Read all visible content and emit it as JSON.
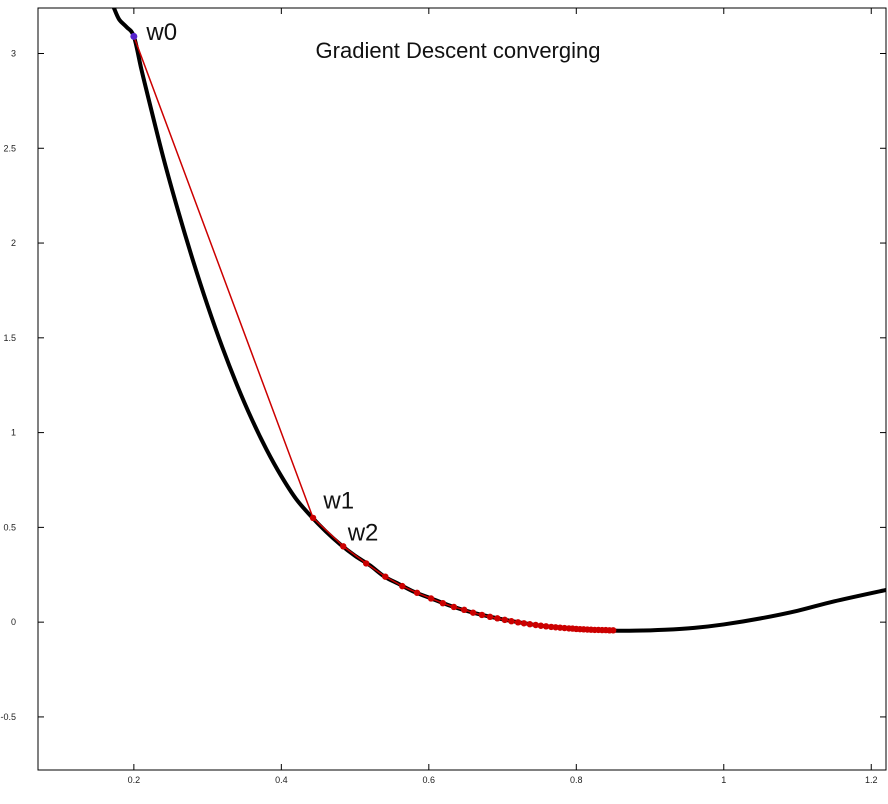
{
  "chart_data": {
    "type": "line",
    "title": "Gradient Descent converging",
    "xlabel": "",
    "ylabel": "",
    "xlim": [
      0.07,
      1.22
    ],
    "ylim": [
      -0.78,
      3.24
    ],
    "grid": false,
    "x_ticks": [
      {
        "value": 0.2,
        "label": "0.2"
      },
      {
        "value": 0.4,
        "label": "0.4"
      },
      {
        "value": 0.6,
        "label": "0.6"
      },
      {
        "value": 0.8,
        "label": "0.8"
      },
      {
        "value": 1.0,
        "label": "1"
      },
      {
        "value": 1.2,
        "label": "1.2"
      }
    ],
    "y_ticks": [
      {
        "value": -0.5,
        "label": "-0.5"
      },
      {
        "value": 0,
        "label": "0"
      },
      {
        "value": 0.5,
        "label": "0.5"
      },
      {
        "value": 1,
        "label": "1"
      },
      {
        "value": 1.5,
        "label": "1.5"
      },
      {
        "value": 2,
        "label": "2"
      },
      {
        "value": 2.5,
        "label": "2.5"
      },
      {
        "value": 3,
        "label": "3"
      }
    ],
    "curve": {
      "color": "#000000",
      "points": [
        [
          0.173,
          3.24
        ],
        [
          0.18,
          3.18
        ],
        [
          0.19,
          3.14
        ],
        [
          0.2,
          3.09
        ],
        [
          0.21,
          2.92
        ],
        [
          0.22,
          2.76
        ],
        [
          0.24,
          2.45
        ],
        [
          0.26,
          2.17
        ],
        [
          0.28,
          1.91
        ],
        [
          0.3,
          1.67
        ],
        [
          0.32,
          1.45
        ],
        [
          0.34,
          1.25
        ],
        [
          0.36,
          1.07
        ],
        [
          0.38,
          0.91
        ],
        [
          0.4,
          0.77
        ],
        [
          0.42,
          0.65
        ],
        [
          0.44,
          0.56
        ],
        [
          0.46,
          0.48
        ],
        [
          0.48,
          0.41
        ],
        [
          0.5,
          0.35
        ],
        [
          0.52,
          0.3
        ],
        [
          0.54,
          0.24
        ],
        [
          0.56,
          0.2
        ],
        [
          0.58,
          0.16
        ],
        [
          0.6,
          0.13
        ],
        [
          0.63,
          0.085
        ],
        [
          0.66,
          0.05
        ],
        [
          0.7,
          0.015
        ],
        [
          0.74,
          -0.012
        ],
        [
          0.78,
          -0.03
        ],
        [
          0.82,
          -0.04
        ],
        [
          0.85,
          -0.045
        ],
        [
          0.88,
          -0.045
        ],
        [
          0.92,
          -0.04
        ],
        [
          0.96,
          -0.03
        ],
        [
          1.0,
          -0.012
        ],
        [
          1.05,
          0.02
        ],
        [
          1.1,
          0.06
        ],
        [
          1.15,
          0.11
        ],
        [
          1.22,
          0.17
        ]
      ]
    },
    "descent_path": {
      "color": "#cc0000",
      "start_color": "#5522cc",
      "points": [
        [
          0.2,
          3.09
        ],
        [
          0.443,
          0.55
        ],
        [
          0.484,
          0.4
        ],
        [
          0.515,
          0.31
        ],
        [
          0.541,
          0.24
        ],
        [
          0.564,
          0.19
        ],
        [
          0.584,
          0.155
        ],
        [
          0.603,
          0.125
        ],
        [
          0.619,
          0.1
        ],
        [
          0.634,
          0.08
        ],
        [
          0.648,
          0.065
        ],
        [
          0.66,
          0.05
        ],
        [
          0.672,
          0.038
        ],
        [
          0.683,
          0.028
        ],
        [
          0.693,
          0.02
        ],
        [
          0.703,
          0.012
        ],
        [
          0.712,
          0.005
        ],
        [
          0.721,
          -0.001
        ],
        [
          0.729,
          -0.006
        ],
        [
          0.737,
          -0.011
        ],
        [
          0.745,
          -0.015
        ],
        [
          0.752,
          -0.019
        ],
        [
          0.759,
          -0.022
        ],
        [
          0.766,
          -0.025
        ],
        [
          0.772,
          -0.027
        ],
        [
          0.778,
          -0.029
        ],
        [
          0.784,
          -0.031
        ],
        [
          0.79,
          -0.033
        ],
        [
          0.795,
          -0.034
        ],
        [
          0.8,
          -0.036
        ],
        [
          0.805,
          -0.037
        ],
        [
          0.81,
          -0.038
        ],
        [
          0.815,
          -0.039
        ],
        [
          0.82,
          -0.04
        ],
        [
          0.825,
          -0.041
        ],
        [
          0.83,
          -0.041
        ],
        [
          0.835,
          -0.042
        ],
        [
          0.84,
          -0.042
        ],
        [
          0.845,
          -0.043
        ],
        [
          0.85,
          -0.043
        ]
      ]
    },
    "annotations": [
      {
        "text": "w0",
        "x": 0.217,
        "y": 3.07
      },
      {
        "text": "w1",
        "x": 0.457,
        "y": 0.6
      },
      {
        "text": "w2",
        "x": 0.49,
        "y": 0.43
      }
    ]
  }
}
